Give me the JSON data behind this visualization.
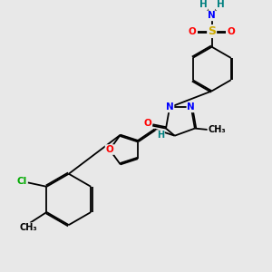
{
  "background_color": "#e8e8e8",
  "atom_colors": {
    "C": "#000000",
    "N": "#0000ff",
    "O": "#ff0000",
    "S": "#ccaa00",
    "Cl": "#00aa00",
    "H": "#008080"
  },
  "bond_color": "#000000",
  "bond_width": 1.3,
  "font_size_atom": 7.5
}
